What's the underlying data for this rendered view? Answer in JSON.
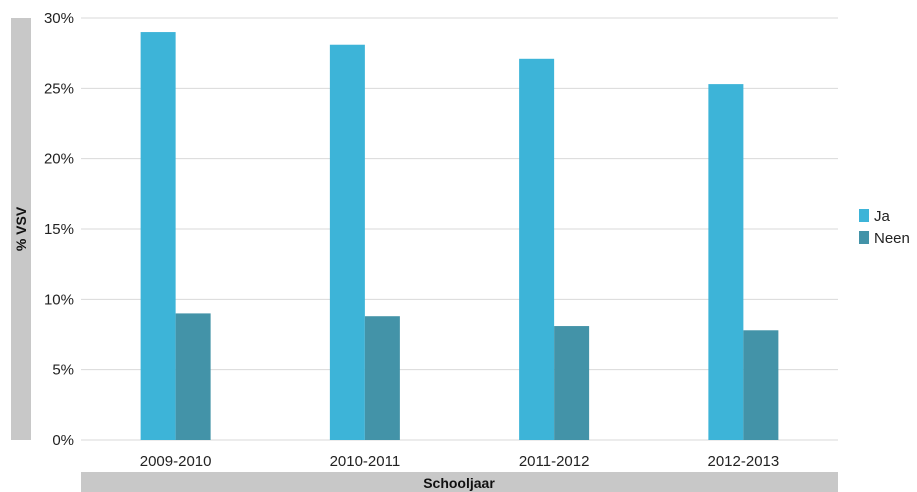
{
  "chart_data": {
    "type": "bar",
    "categories": [
      "2009-2010",
      "2010-2011",
      "2011-2012",
      "2012-2013"
    ],
    "series": [
      {
        "name": "Ja",
        "color": "#3db4d8",
        "values": [
          29.0,
          28.1,
          27.1,
          25.3
        ]
      },
      {
        "name": "Neen",
        "color": "#4393a8",
        "values": [
          9.0,
          8.8,
          8.1,
          7.8
        ]
      }
    ],
    "xlabel": "Schooljaar",
    "ylabel": "% VSV",
    "ylim": [
      0,
      30
    ],
    "yticks": [
      "0%",
      "5%",
      "10%",
      "15%",
      "20%",
      "25%",
      "30%"
    ],
    "grid": true,
    "legend_position": "right",
    "axis_band_color": "#c8c8c8",
    "grid_color": "#d9d9d9"
  }
}
